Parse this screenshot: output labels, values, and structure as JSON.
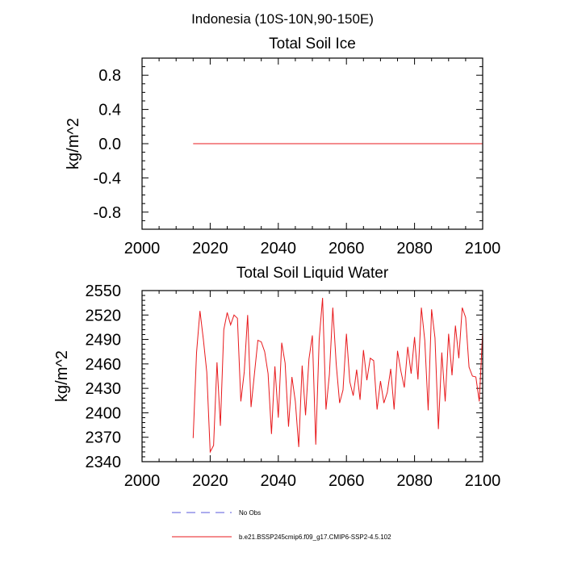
{
  "figure_title": "Indonesia (10S-10N,90-150E)",
  "colors": {
    "model_line": "#e8191c",
    "obs_line": "#5a5adc",
    "axis": "#000000"
  },
  "legend": {
    "obs_label": "No Obs",
    "model_label": "b.e21.BSSP245cmip6.f09_g17.CMIP6-SSP2-4.5.102"
  },
  "chart_data": [
    {
      "type": "line",
      "title": "Total Soil Ice",
      "xlabel": "",
      "ylabel": "kg/m^2",
      "xlim": [
        2000,
        2100
      ],
      "ylim": [
        -1.0,
        1.0
      ],
      "xticks": [
        2000,
        2020,
        2040,
        2060,
        2080,
        2100
      ],
      "yticks": [
        -0.8,
        -0.4,
        0.0,
        0.4,
        0.8
      ],
      "ytick_labels": [
        "-0.8",
        "-0.4",
        "0.0",
        "0.4",
        "0.8"
      ],
      "grid": false,
      "series": [
        {
          "x": [
            2015,
            2100
          ],
          "values": [
            0.0,
            0.0
          ]
        }
      ]
    },
    {
      "type": "line",
      "title": "Total Soil Liquid Water",
      "xlabel": "",
      "ylabel": "kg/m^2",
      "xlim": [
        2000,
        2100
      ],
      "ylim": [
        2340,
        2550
      ],
      "xticks": [
        2000,
        2020,
        2040,
        2060,
        2080,
        2100
      ],
      "yticks": [
        2340,
        2370,
        2400,
        2430,
        2460,
        2490,
        2520,
        2550
      ],
      "ytick_labels": [
        "2340",
        "2370",
        "2400",
        "2430",
        "2460",
        "2490",
        "2520",
        "2550"
      ],
      "grid": false,
      "series": [
        {
          "x_start": 2015,
          "x_step": 1,
          "values": [
            2369,
            2474,
            2525,
            2490,
            2450,
            2352,
            2360,
            2462,
            2384,
            2502,
            2523,
            2508,
            2520,
            2516,
            2414,
            2450,
            2520,
            2407,
            2448,
            2489,
            2487,
            2475,
            2448,
            2374,
            2457,
            2394,
            2486,
            2461,
            2383,
            2444,
            2414,
            2358,
            2458,
            2397,
            2466,
            2495,
            2361,
            2490,
            2541,
            2404,
            2447,
            2529,
            2460,
            2412,
            2428,
            2497,
            2438,
            2421,
            2453,
            2416,
            2477,
            2440,
            2467,
            2464,
            2404,
            2439,
            2412,
            2425,
            2454,
            2404,
            2476,
            2451,
            2431,
            2481,
            2448,
            2493,
            2441,
            2529,
            2489,
            2403,
            2527,
            2492,
            2380,
            2474,
            2414,
            2497,
            2446,
            2507,
            2467,
            2529,
            2517,
            2456,
            2445,
            2444,
            2414,
            2500
          ]
        }
      ]
    }
  ]
}
